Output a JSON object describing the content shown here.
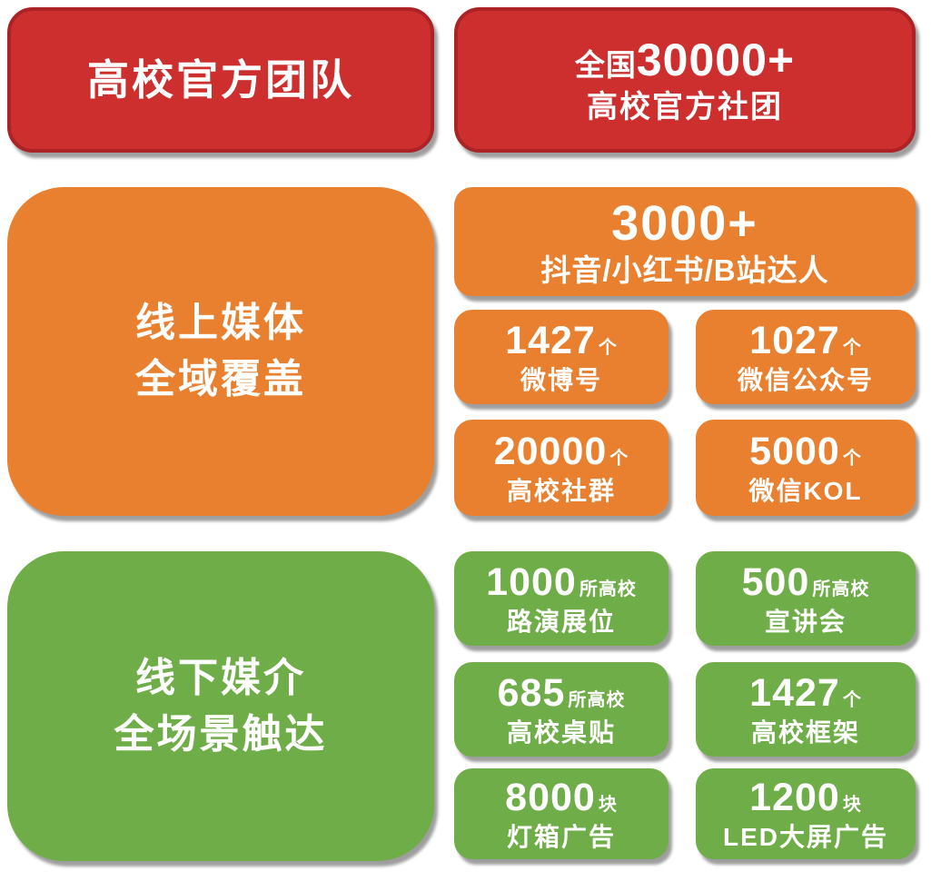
{
  "palette": {
    "red": "#cd2f2f",
    "red_border": "#ab2324",
    "orange": "#e8802f",
    "green": "#6fad49",
    "text": "#ffffff"
  },
  "official": {
    "title": "高校官方团队",
    "stat_prefix": "全国",
    "stat_number": "30000+",
    "stat_label": "高校官方社团"
  },
  "online": {
    "title_line1": "线上媒体",
    "title_line2": "全域覆盖",
    "wide": {
      "number": "3000+",
      "label": "抖音/小红书/B站达人"
    },
    "stats": [
      {
        "number": "1427",
        "unit": "个",
        "label": "微博号"
      },
      {
        "number": "1027",
        "unit": "个",
        "label": "微信公众号"
      },
      {
        "number": "20000",
        "unit": "个",
        "label": "高校社群"
      },
      {
        "number": "5000",
        "unit": "个",
        "label": "微信KOL"
      }
    ]
  },
  "offline": {
    "title_line1": "线下媒介",
    "title_line2": "全场景触达",
    "stats": [
      {
        "number": "1000",
        "unit": "所高校",
        "label": "路演展位"
      },
      {
        "number": "500",
        "unit": "所高校",
        "label": "宣讲会"
      },
      {
        "number": "685",
        "unit": "所高校",
        "label": "高校桌贴"
      },
      {
        "number": "1427",
        "unit": "个",
        "label": "高校框架"
      },
      {
        "number": "8000",
        "unit": "块",
        "label": "灯箱广告"
      },
      {
        "number": "1200",
        "unit": "块",
        "label": "LED大屏广告"
      }
    ]
  }
}
